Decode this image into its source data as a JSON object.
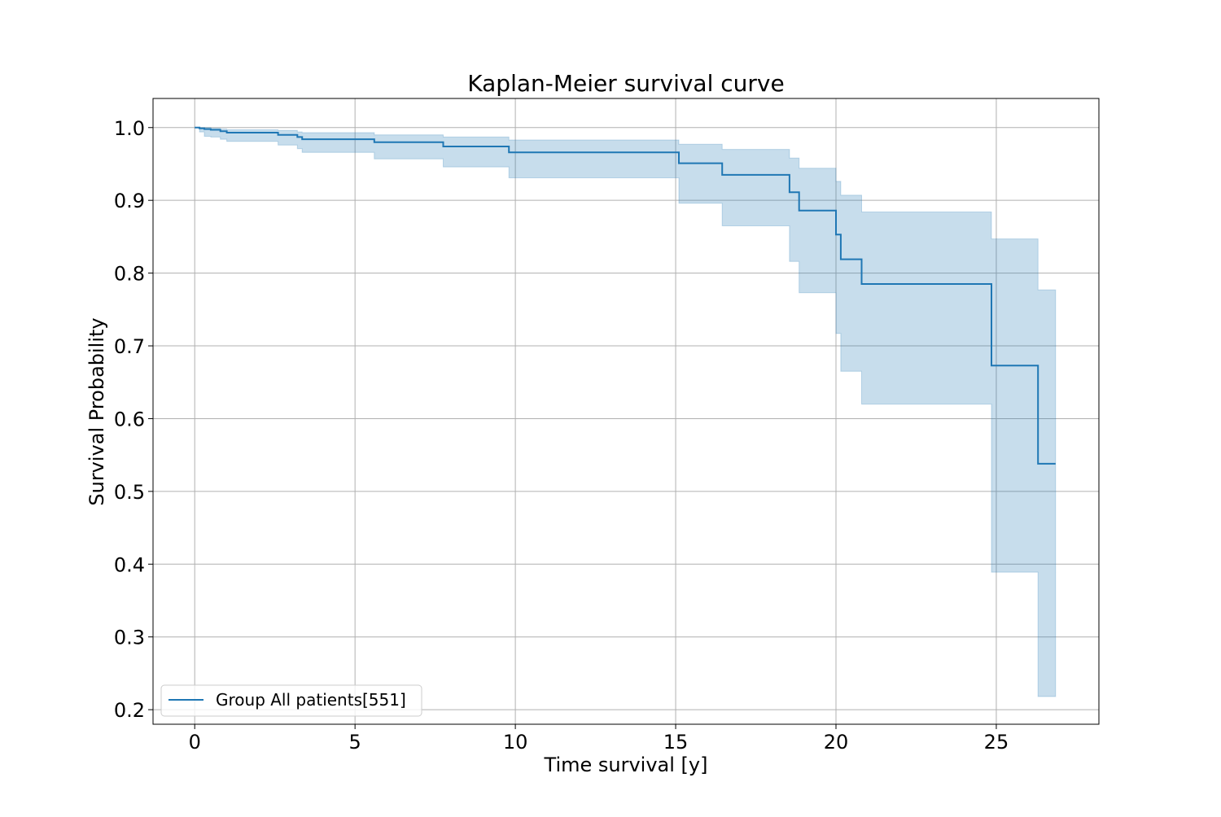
{
  "chart_data": {
    "type": "line",
    "subtype": "kaplan-meier step curve with confidence band",
    "title": "Kaplan-Meier survival curve",
    "xlabel": "Time survival [y]",
    "ylabel": "Survival Probability",
    "xlim": [
      -1.3,
      28.2
    ],
    "ylim": [
      0.18,
      1.04
    ],
    "xticks": [
      0,
      5,
      10,
      15,
      20,
      25
    ],
    "yticks": [
      0.2,
      0.3,
      0.4,
      0.5,
      0.6,
      0.7,
      0.8,
      0.9,
      1.0
    ],
    "ytick_labels": [
      "0.2",
      "0.3",
      "0.4",
      "0.5",
      "0.6",
      "0.7",
      "0.8",
      "0.9",
      "1.0"
    ],
    "grid": true,
    "legend_position": "bottom-left",
    "series": [
      {
        "name": "Group All patients[551]",
        "color": "#1f77b4",
        "band_color": "#1f77b4",
        "steps": [
          {
            "t": 0.0,
            "s": 1.0,
            "lo": 1.0,
            "hi": 1.0
          },
          {
            "t": 0.15,
            "s": 0.999,
            "lo": 0.994,
            "hi": 1.0
          },
          {
            "t": 0.3,
            "s": 0.998,
            "lo": 0.988,
            "hi": 1.0
          },
          {
            "t": 0.5,
            "s": 0.997,
            "lo": 0.987,
            "hi": 0.999
          },
          {
            "t": 0.8,
            "s": 0.995,
            "lo": 0.984,
            "hi": 0.998
          },
          {
            "t": 1.0,
            "s": 0.993,
            "lo": 0.981,
            "hi": 0.997
          },
          {
            "t": 2.6,
            "s": 0.99,
            "lo": 0.976,
            "hi": 0.996
          },
          {
            "t": 3.2,
            "s": 0.987,
            "lo": 0.971,
            "hi": 0.994
          },
          {
            "t": 3.35,
            "s": 0.984,
            "lo": 0.966,
            "hi": 0.993
          },
          {
            "t": 5.6,
            "s": 0.98,
            "lo": 0.957,
            "hi": 0.99
          },
          {
            "t": 7.75,
            "s": 0.974,
            "lo": 0.946,
            "hi": 0.987
          },
          {
            "t": 9.8,
            "s": 0.966,
            "lo": 0.931,
            "hi": 0.983
          },
          {
            "t": 15.1,
            "s": 0.951,
            "lo": 0.896,
            "hi": 0.977
          },
          {
            "t": 16.45,
            "s": 0.935,
            "lo": 0.865,
            "hi": 0.97
          },
          {
            "t": 18.55,
            "s": 0.911,
            "lo": 0.816,
            "hi": 0.958
          },
          {
            "t": 18.85,
            "s": 0.886,
            "lo": 0.773,
            "hi": 0.944
          },
          {
            "t": 20.0,
            "s": 0.853,
            "lo": 0.717,
            "hi": 0.926
          },
          {
            "t": 20.15,
            "s": 0.819,
            "lo": 0.665,
            "hi": 0.907
          },
          {
            "t": 20.8,
            "s": 0.785,
            "lo": 0.62,
            "hi": 0.884
          },
          {
            "t": 24.85,
            "s": 0.673,
            "lo": 0.389,
            "hi": 0.847
          },
          {
            "t": 26.3,
            "s": 0.538,
            "lo": 0.218,
            "hi": 0.777
          }
        ],
        "end_time": 26.85
      }
    ]
  }
}
